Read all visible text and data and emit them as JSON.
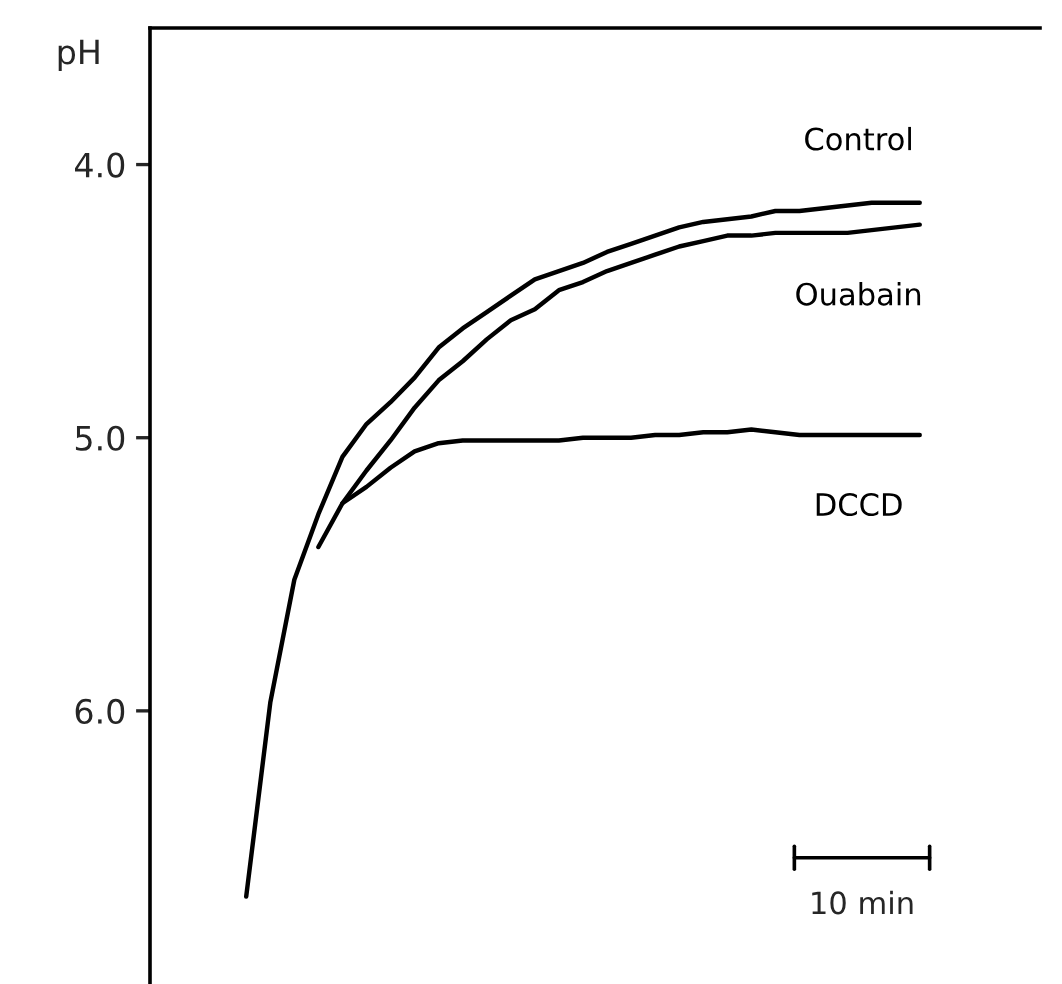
{
  "chart_data": {
    "type": "line",
    "ylabel": "pH",
    "categories": [
      null,
      null,
      null,
      null,
      null,
      null,
      null,
      null,
      null,
      null,
      null,
      null,
      null,
      null,
      null,
      null,
      null,
      null,
      null,
      null,
      null,
      null,
      null,
      null,
      null,
      null,
      null,
      null,
      null,
      null,
      null,
      null,
      null,
      null,
      null,
      null,
      null,
      null
    ],
    "series": [
      {
        "name": "Control",
        "color": "#000000",
        "values": [
          null,
          null,
          null,
          null,
          6.68,
          5.97,
          5.52,
          5.28,
          5.07,
          4.95,
          4.87,
          4.78,
          4.67,
          4.6,
          4.54,
          4.48,
          4.42,
          4.39,
          4.36,
          4.32,
          4.29,
          4.26,
          4.23,
          4.21,
          4.2,
          4.19,
          4.17,
          4.17,
          4.16,
          4.15,
          4.14,
          4.14,
          4.14,
          null,
          null,
          null,
          null,
          null
        ]
      },
      {
        "name": "Ouabain",
        "color": "#000000",
        "values": [
          null,
          null,
          null,
          null,
          null,
          null,
          null,
          5.4,
          5.24,
          5.12,
          5.01,
          4.89,
          4.79,
          4.72,
          4.64,
          4.57,
          4.53,
          4.46,
          4.43,
          4.39,
          4.36,
          4.33,
          4.3,
          4.28,
          4.26,
          4.26,
          4.25,
          4.25,
          4.25,
          4.25,
          4.24,
          4.23,
          4.22,
          null,
          null,
          null,
          null,
          null
        ]
      },
      {
        "name": "DCCD",
        "color": "#000000",
        "values": [
          null,
          null,
          null,
          null,
          null,
          null,
          null,
          null,
          5.24,
          5.18,
          5.11,
          5.05,
          5.02,
          5.01,
          5.01,
          5.01,
          5.01,
          5.01,
          5.0,
          5.0,
          5.0,
          4.99,
          4.99,
          4.98,
          4.98,
          4.97,
          4.98,
          4.99,
          4.99,
          4.99,
          4.99,
          4.99,
          4.99,
          null,
          null,
          null,
          null,
          null
        ]
      }
    ],
    "ylim": [
      7.0,
      3.5
    ],
    "yticks": [
      {
        "value": 4,
        "label": "4.0"
      },
      {
        "value": 5,
        "label": "5.0"
      },
      {
        "value": 6,
        "label": "6.0"
      }
    ],
    "grid": false,
    "legend": false,
    "marker": "none",
    "line_style": "solid",
    "annotations": [
      "10 min"
    ]
  }
}
